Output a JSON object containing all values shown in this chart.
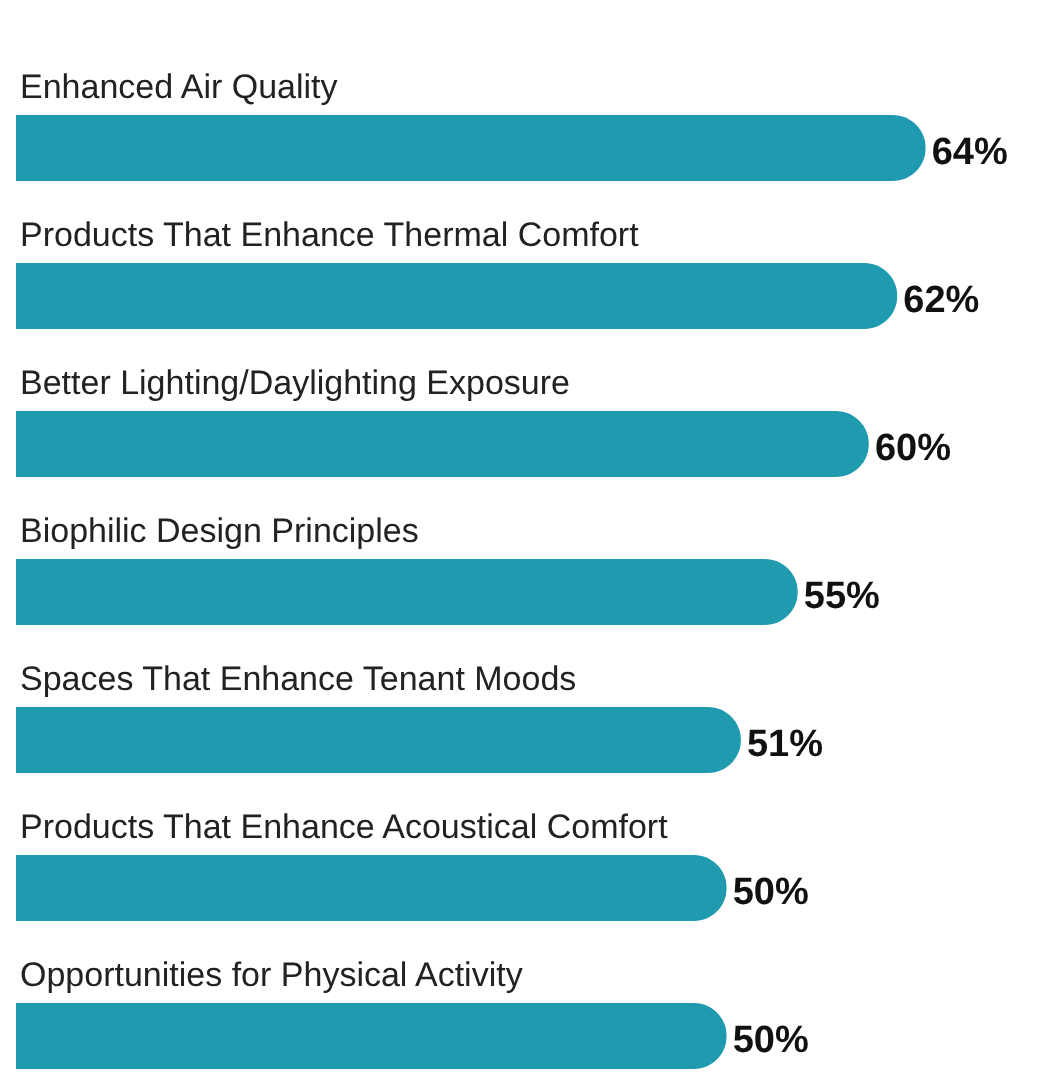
{
  "chart_data": {
    "type": "bar",
    "orientation": "horizontal",
    "categories": [
      "Enhanced Air Quality",
      "Products That Enhance Thermal Comfort",
      "Better Lighting/Daylighting Exposure",
      "Biophilic Design Principles",
      "Spaces That Enhance Tenant Moods",
      "Products That Enhance Acoustical Comfort",
      "Opportunities for Physical Activity"
    ],
    "values": [
      64,
      62,
      60,
      55,
      51,
      50,
      50
    ],
    "value_labels": [
      "64%",
      "62%",
      "60%",
      "55%",
      "51%",
      "50%",
      "50%"
    ],
    "color": "#1f9aae"
  }
}
